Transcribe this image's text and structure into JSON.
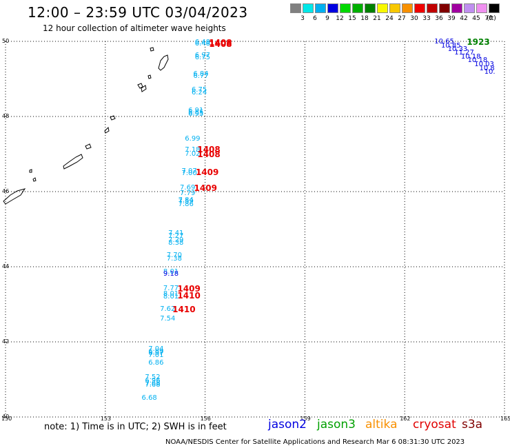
{
  "title": "12:00 – 23:59 UTC 03/04/2023",
  "subtitle": "12 hour collection of altimeter wave heights",
  "colorbar": {
    "colors": [
      "#808080",
      "#00e8e8",
      "#00b0f0",
      "#0000e0",
      "#00d800",
      "#00b000",
      "#008000",
      "#f8f800",
      "#f8c800",
      "#f89000",
      "#f00000",
      "#c00000",
      "#800000",
      "#a000a0",
      "#c090f0",
      "#f090f0",
      "#000000"
    ],
    "labels": [
      "3",
      "6",
      "9",
      "12",
      "15",
      "18",
      "21",
      "24",
      "27",
      "30",
      "33",
      "36",
      "39",
      "42",
      "45",
      "70",
      "(ft)"
    ]
  },
  "axes": {
    "lat_labels": [
      "50",
      "48",
      "46",
      "44",
      "42",
      "40"
    ],
    "lon_labels": [
      "150",
      "153",
      "156",
      "159",
      "162",
      "165"
    ]
  },
  "chart_data": {
    "type": "map",
    "extent": {
      "lon": [
        150,
        165
      ],
      "lat": [
        40,
        50
      ]
    },
    "heights": [
      {
        "v": "6.48",
        "lon": 155.9,
        "lat": 49.97,
        "c": "#00b0f0"
      },
      {
        "v": "6.48",
        "lon": 155.9,
        "lat": 49.93,
        "c": "#00b0f0"
      },
      {
        "v": "6.97",
        "lon": 155.9,
        "lat": 49.62,
        "c": "#00b0f0"
      },
      {
        "v": "6.75",
        "lon": 155.9,
        "lat": 49.56,
        "c": "#00b0f0"
      },
      {
        "v": "6.84",
        "lon": 155.85,
        "lat": 49.12,
        "c": "#00b0f0"
      },
      {
        "v": "6.77",
        "lon": 155.85,
        "lat": 49.07,
        "c": "#00b0f0"
      },
      {
        "v": "6.75",
        "lon": 155.8,
        "lat": 48.7,
        "c": "#00b0f0"
      },
      {
        "v": "6.24",
        "lon": 155.8,
        "lat": 48.62,
        "c": "#00b0f0"
      },
      {
        "v": "6.91",
        "lon": 155.7,
        "lat": 48.15,
        "c": "#00b0f0"
      },
      {
        "v": "6.85",
        "lon": 155.7,
        "lat": 48.1,
        "c": "#00b0f0"
      },
      {
        "v": "6.95",
        "lon": 155.7,
        "lat": 48.05,
        "c": "#00b0f0"
      },
      {
        "v": "6.99",
        "lon": 155.6,
        "lat": 47.4,
        "c": "#00b0f0"
      },
      {
        "v": "7.18",
        "lon": 155.6,
        "lat": 47.1,
        "c": "#00b0f0"
      },
      {
        "v": "7.02",
        "lon": 155.6,
        "lat": 46.99,
        "c": "#00b0f0"
      },
      {
        "v": "7.07",
        "lon": 155.5,
        "lat": 46.53,
        "c": "#00b0f0"
      },
      {
        "v": "7.00",
        "lon": 155.5,
        "lat": 46.47,
        "c": "#00b0f0"
      },
      {
        "v": "7.69",
        "lon": 155.45,
        "lat": 46.1,
        "c": "#00b0f0"
      },
      {
        "v": "7.79",
        "lon": 155.45,
        "lat": 45.95,
        "c": "#00b0f0"
      },
      {
        "v": "7.84",
        "lon": 155.4,
        "lat": 45.77,
        "c": "#00b0f0"
      },
      {
        "v": "7.59",
        "lon": 155.4,
        "lat": 45.73,
        "c": "#00b0f0"
      },
      {
        "v": "7.86",
        "lon": 155.4,
        "lat": 45.66,
        "c": "#00b0f0"
      },
      {
        "v": "7.41",
        "lon": 155.1,
        "lat": 44.88,
        "c": "#00b0f0"
      },
      {
        "v": "7.27",
        "lon": 155.1,
        "lat": 44.8,
        "c": "#00b0f0"
      },
      {
        "v": "7.29",
        "lon": 155.1,
        "lat": 44.7,
        "c": "#00b0f0"
      },
      {
        "v": "8.38",
        "lon": 155.1,
        "lat": 44.63,
        "c": "#00b0f0"
      },
      {
        "v": "7.70",
        "lon": 155.05,
        "lat": 44.3,
        "c": "#00b0f0"
      },
      {
        "v": "7.38",
        "lon": 155.05,
        "lat": 44.2,
        "c": "#00b0f0"
      },
      {
        "v": "8.01",
        "lon": 154.95,
        "lat": 43.85,
        "c": "#00b0f0"
      },
      {
        "v": "9.18",
        "lon": 154.95,
        "lat": 43.8,
        "c": "#0000e0"
      },
      {
        "v": "7.77",
        "lon": 154.95,
        "lat": 43.41,
        "c": "#00b0f0"
      },
      {
        "v": "8.01",
        "lon": 154.95,
        "lat": 43.26,
        "c": "#00b0f0"
      },
      {
        "v": "8.01",
        "lon": 154.95,
        "lat": 43.19,
        "c": "#00b0f0"
      },
      {
        "v": "7.62",
        "lon": 154.85,
        "lat": 42.87,
        "c": "#00b0f0"
      },
      {
        "v": "7.54",
        "lon": 154.85,
        "lat": 42.6,
        "c": "#00b0f0"
      },
      {
        "v": "7.04",
        "lon": 154.5,
        "lat": 41.8,
        "c": "#00b0f0"
      },
      {
        "v": "6.89",
        "lon": 154.5,
        "lat": 41.73,
        "c": "#00b0f0"
      },
      {
        "v": "6.97",
        "lon": 154.5,
        "lat": 41.68,
        "c": "#00b0f0"
      },
      {
        "v": "7.01",
        "lon": 154.5,
        "lat": 41.63,
        "c": "#00b0f0"
      },
      {
        "v": "6.86",
        "lon": 154.5,
        "lat": 41.43,
        "c": "#00b0f0"
      },
      {
        "v": "7.52",
        "lon": 154.4,
        "lat": 41.05,
        "c": "#00b0f0"
      },
      {
        "v": "6.96",
        "lon": 154.4,
        "lat": 40.96,
        "c": "#00b0f0"
      },
      {
        "v": "7.68",
        "lon": 154.4,
        "lat": 40.88,
        "c": "#00b0f0"
      },
      {
        "v": "7.68",
        "lon": 154.4,
        "lat": 40.84,
        "c": "#00b0f0"
      },
      {
        "v": "6.68",
        "lon": 154.3,
        "lat": 40.5,
        "c": "#00b0f0"
      },
      {
        "v": "10.65",
        "lon": 163.1,
        "lat": 49.98,
        "c": "#0000e0"
      },
      {
        "v": "10.85",
        "lon": 163.3,
        "lat": 49.88,
        "c": "#0000e0"
      },
      {
        "v": "10.33",
        "lon": 163.5,
        "lat": 49.78,
        "c": "#0000e0"
      },
      {
        "v": "11.27",
        "lon": 163.7,
        "lat": 49.68,
        "c": "#0000e0"
      },
      {
        "v": "10.18",
        "lon": 163.9,
        "lat": 49.58,
        "c": "#0000e0"
      },
      {
        "v": "10.18",
        "lon": 164.1,
        "lat": 49.48,
        "c": "#0000e0"
      },
      {
        "v": "10.03",
        "lon": 164.3,
        "lat": 49.37,
        "c": "#0000e0"
      },
      {
        "v": "10.8",
        "lon": 164.45,
        "lat": 49.27,
        "c": "#0000e0"
      },
      {
        "v": "10.",
        "lon": 164.6,
        "lat": 49.17,
        "c": "#0000e0"
      }
    ],
    "times": [
      {
        "t": "1408",
        "lon": 156.2,
        "lat": 49.97,
        "c": "#e80000"
      },
      {
        "t": "1408",
        "lon": 156.2,
        "lat": 49.93,
        "c": "#e80000"
      },
      {
        "t": "1408",
        "lon": 155.85,
        "lat": 47.12,
        "c": "#e80000"
      },
      {
        "t": "1408",
        "lon": 155.85,
        "lat": 47.0,
        "c": "#e80000"
      },
      {
        "t": "1409",
        "lon": 155.8,
        "lat": 46.52,
        "c": "#e80000"
      },
      {
        "t": "1409",
        "lon": 155.75,
        "lat": 46.1,
        "c": "#e80000"
      },
      {
        "t": "1409",
        "lon": 155.25,
        "lat": 43.41,
        "c": "#e80000"
      },
      {
        "t": "1410",
        "lon": 155.25,
        "lat": 43.23,
        "c": "#e80000"
      },
      {
        "t": "1410",
        "lon": 155.1,
        "lat": 42.87,
        "c": "#e80000"
      },
      {
        "t": "1923",
        "lon": 163.95,
        "lat": 49.98,
        "c": "#008000"
      }
    ]
  },
  "footer": {
    "note": "note: 1) Time is in UTC; 2) SWH is in feet",
    "satellites": [
      {
        "name": "jason2",
        "color": "#0000e0"
      },
      {
        "name": "jason3",
        "color": "#00a000"
      },
      {
        "name": "altika",
        "color": "#f89000"
      },
      {
        "name": "cryosat",
        "color": "#e00000"
      },
      {
        "name": "s3a",
        "color": "#800000"
      }
    ],
    "credit": "NOAA/NESDIS Center for Satellite Applications and Research   Mar  6 08:31:30 UTC 2023"
  }
}
